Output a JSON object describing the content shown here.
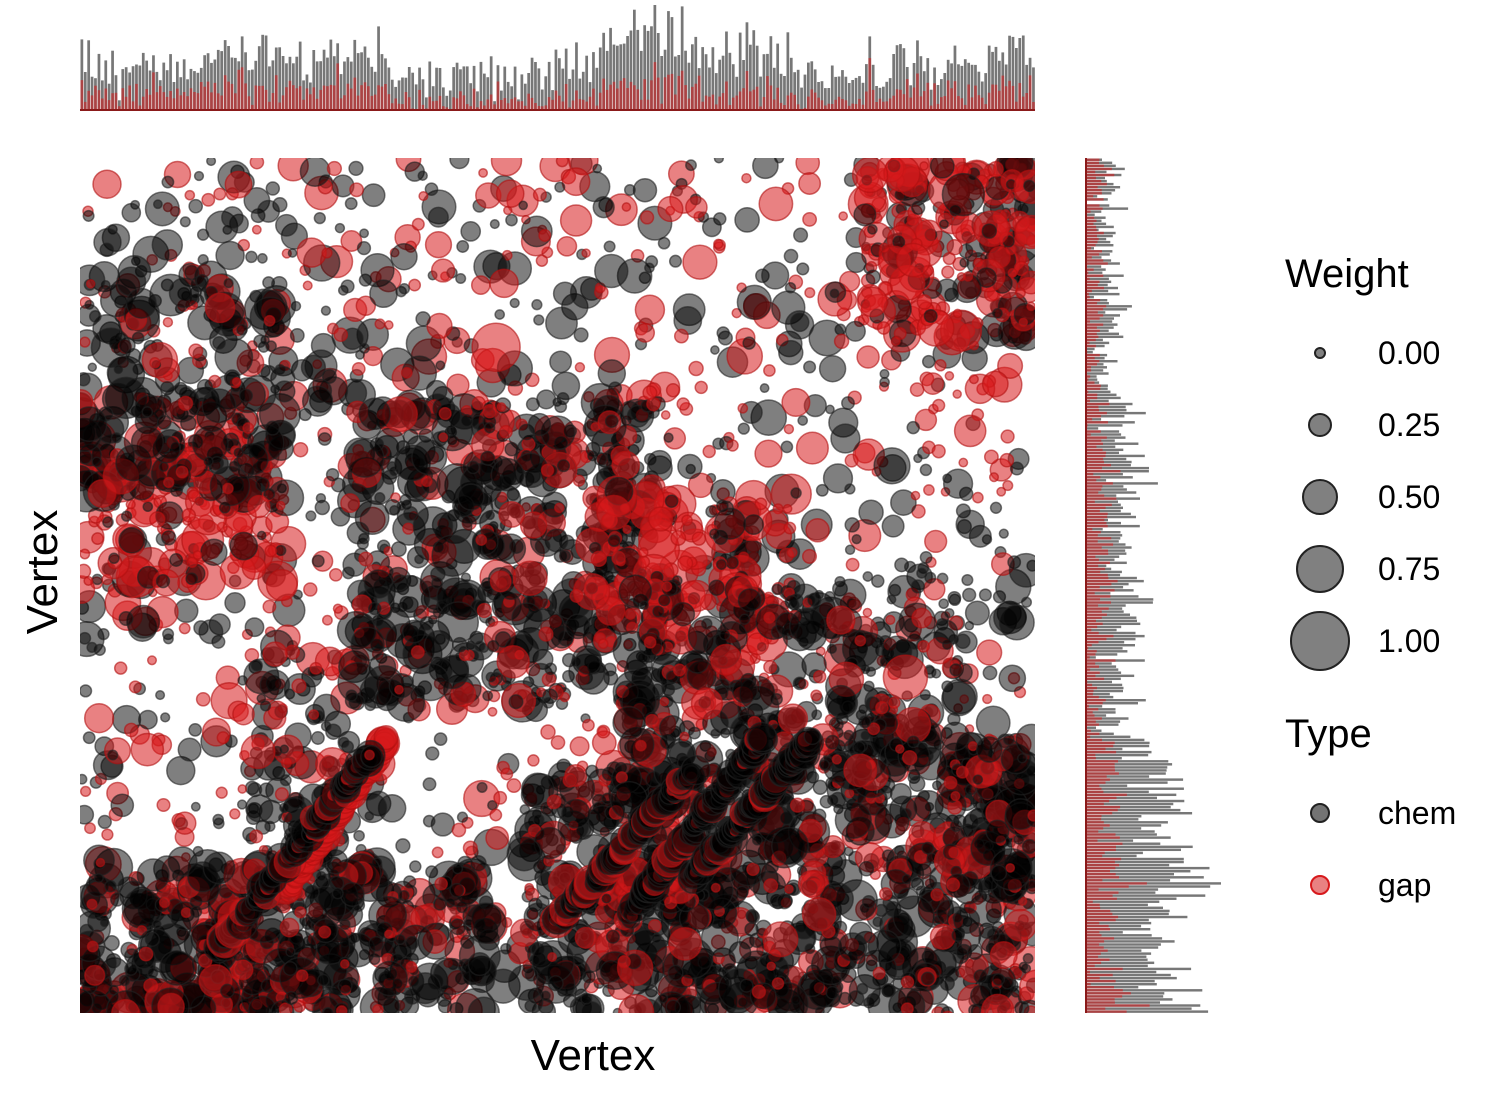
{
  "chart_data": {
    "type": "scatter",
    "title": "",
    "xlabel": "Vertex",
    "ylabel": "Vertex",
    "grid": false,
    "legend_position": "right",
    "description_of_marks": "adjacency-matrix style bubble plot of edges between vertices, bubble size encodes edge weight, color encodes edge type; marginal bar histograms of weight per vertex on top (columns) and right (rows)",
    "vertex_count": 280,
    "legend_weight": {
      "title": "Weight",
      "values": [
        0.0,
        0.25,
        0.5,
        0.75,
        1.0
      ],
      "labels": [
        "0.00",
        "0.25",
        "0.50",
        "0.75",
        "1.00"
      ]
    },
    "legend_type": {
      "title": "Type",
      "entries": [
        {
          "label": "chem",
          "color": "#000000"
        },
        {
          "label": "gap",
          "color": "#d7191c"
        }
      ]
    },
    "colors": {
      "chem": "#000000",
      "gap": "#d7191c"
    },
    "clusters": [
      {
        "type": "gap",
        "x": [
          0,
          60
        ],
        "y": [
          0,
          8
        ],
        "density": 0.9
      },
      {
        "type": "gap",
        "x": [
          35,
          50
        ],
        "y": [
          0,
          40
        ],
        "density": 0.8
      },
      {
        "type": "chem",
        "x": [
          0,
          120
        ],
        "y": [
          0,
          50
        ],
        "density": 0.5
      },
      {
        "type": "chem",
        "x": [
          130,
          280
        ],
        "y": [
          0,
          80
        ],
        "density": 0.5
      },
      {
        "type": "gap",
        "x": [
          145,
          180
        ],
        "y": [
          35,
          45
        ],
        "density": 0.6
      },
      {
        "type": "chem",
        "x": [
          255,
          280
        ],
        "y": [
          40,
          90
        ],
        "density": 0.7
      },
      {
        "type": "chem",
        "x": [
          80,
          170
        ],
        "y": [
          100,
          200
        ],
        "density": 0.4
      },
      {
        "type": "gap",
        "x": [
          150,
          210
        ],
        "y": [
          120,
          170
        ],
        "density": 0.4
      },
      {
        "type": "chem",
        "x": [
          160,
          260
        ],
        "y": [
          80,
          140
        ],
        "density": 0.4
      },
      {
        "type": "gap",
        "x": [
          0,
          60
        ],
        "y": [
          140,
          190
        ],
        "density": 0.4
      },
      {
        "type": "chem",
        "x": [
          0,
          60
        ],
        "y": [
          170,
          240
        ],
        "density": 0.35
      },
      {
        "type": "chem",
        "x": [
          270,
          280
        ],
        "y": [
          240,
          280
        ],
        "density": 0.5
      },
      {
        "type": "gap",
        "x": [
          230,
          280
        ],
        "y": [
          220,
          280
        ],
        "density": 0.5
      },
      {
        "type": "chem",
        "x": [
          50,
          80
        ],
        "y": [
          0,
          120
        ],
        "density": 0.3
      }
    ],
    "diagonal_bands": [
      {
        "type": "chem",
        "from": [
          140,
          30
        ],
        "to": [
          180,
          80
        ]
      },
      {
        "type": "chem",
        "from": [
          160,
          30
        ],
        "to": [
          200,
          90
        ]
      },
      {
        "type": "chem",
        "from": [
          180,
          45
        ],
        "to": [
          215,
          90
        ]
      },
      {
        "type": "gap",
        "from": [
          60,
          40
        ],
        "to": [
          90,
          90
        ]
      },
      {
        "type": "chem",
        "from": [
          40,
          20
        ],
        "to": [
          85,
          85
        ]
      }
    ],
    "highlight_points": [
      {
        "type": "gap",
        "vx": 122,
        "vy": 218,
        "weight": 1.0
      },
      {
        "type": "gap",
        "vx": 242,
        "vy": 110,
        "weight": 0.9
      },
      {
        "type": "chem",
        "vx": 261,
        "vy": 160,
        "weight": 0.5
      },
      {
        "type": "chem",
        "vx": 259,
        "vy": 268,
        "weight": 0.85
      },
      {
        "type": "gap",
        "vx": 150,
        "vy": 138,
        "weight": 0.7
      },
      {
        "type": "gap",
        "vx": 127,
        "vy": 115,
        "weight": 0.6
      },
      {
        "type": "chem",
        "vx": 161,
        "vy": 95,
        "weight": 0.6
      }
    ]
  }
}
